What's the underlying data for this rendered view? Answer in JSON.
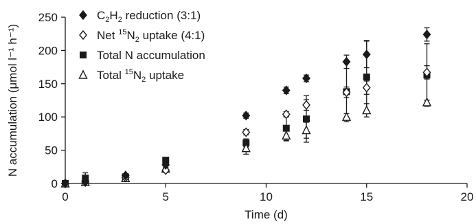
{
  "chart_data": {
    "type": "scatter",
    "xlabel": "Time (d)",
    "ylabel": "N accumulation (μmol l⁻¹ h⁻¹)",
    "xlim": [
      0,
      20
    ],
    "ylim": [
      0,
      250
    ],
    "xticks": [
      0,
      5,
      10,
      15,
      20
    ],
    "yticks": [
      0,
      50,
      100,
      150,
      200,
      250
    ],
    "grid": false,
    "legend_position": "top-left",
    "series": [
      {
        "key": "c2h2",
        "name": "C2H2 reduction (3:1)",
        "legend_parts": [
          {
            "t": "C",
            "s": ""
          },
          {
            "t": "2",
            "s": "sub"
          },
          {
            "t": "H",
            "s": ""
          },
          {
            "t": "2",
            "s": "sub"
          },
          {
            "t": " reduction (3:1)",
            "s": ""
          }
        ],
        "marker": "diamond-filled",
        "points": [
          {
            "x": 0,
            "y": 0,
            "err": 0
          },
          {
            "x": 1,
            "y": 4,
            "err": 2
          },
          {
            "x": 3,
            "y": 12,
            "err": 2
          },
          {
            "x": 5,
            "y": 28,
            "err": 2
          },
          {
            "x": 9,
            "y": 102,
            "err": 4
          },
          {
            "x": 11,
            "y": 140,
            "err": 5
          },
          {
            "x": 12,
            "y": 158,
            "err": 5
          },
          {
            "x": 14,
            "y": 183,
            "err": 10
          },
          {
            "x": 15,
            "y": 194,
            "err": 20
          },
          {
            "x": 18,
            "y": 224,
            "err": 10
          }
        ]
      },
      {
        "key": "net15n2",
        "name": "Net 15N2 uptake (4:1)",
        "legend_parts": [
          {
            "t": "Net ",
            "s": ""
          },
          {
            "t": "15",
            "s": "sup"
          },
          {
            "t": "N",
            "s": ""
          },
          {
            "t": "2",
            "s": "sub"
          },
          {
            "t": " uptake (4:1)",
            "s": ""
          }
        ],
        "marker": "diamond-open",
        "points": [
          {
            "x": 0,
            "y": 0,
            "err": 0
          },
          {
            "x": 1,
            "y": 2,
            "err": 2
          },
          {
            "x": 3,
            "y": 9,
            "err": 2
          },
          {
            "x": 5,
            "y": 20,
            "err": 3
          },
          {
            "x": 9,
            "y": 77,
            "err": 4
          },
          {
            "x": 11,
            "y": 104,
            "err": 4
          },
          {
            "x": 12,
            "y": 118,
            "err": 8
          },
          {
            "x": 14,
            "y": 137,
            "err": 8
          },
          {
            "x": 15,
            "y": 144,
            "err": 10
          },
          {
            "x": 18,
            "y": 167,
            "err": 10
          }
        ]
      },
      {
        "key": "totaln",
        "name": "Total N accumulation",
        "legend_parts": [
          {
            "t": "Total N accumulation",
            "s": ""
          }
        ],
        "marker": "square-filled",
        "points": [
          {
            "x": 0,
            "y": 0,
            "err": 0
          },
          {
            "x": 1,
            "y": 8,
            "err": 8
          },
          {
            "x": 3,
            "y": 10,
            "err": 2
          },
          {
            "x": 5,
            "y": 35,
            "err": 2
          },
          {
            "x": 9,
            "y": 61,
            "err": 6
          },
          {
            "x": 11,
            "y": 83,
            "err": 18
          },
          {
            "x": 12,
            "y": 97,
            "err": 35
          },
          {
            "x": 14,
            "y": 138,
            "err": 45
          },
          {
            "x": 15,
            "y": 160,
            "err": 55
          },
          {
            "x": 18,
            "y": 163,
            "err": 47
          }
        ]
      },
      {
        "key": "total15n2",
        "name": "Total 15N2 uptake",
        "legend_parts": [
          {
            "t": "Total ",
            "s": ""
          },
          {
            "t": "15",
            "s": "sup"
          },
          {
            "t": "N",
            "s": ""
          },
          {
            "t": "2",
            "s": "sub"
          },
          {
            "t": " uptake",
            "s": ""
          }
        ],
        "marker": "triangle-open",
        "points": [
          {
            "x": 0,
            "y": 0,
            "err": 0
          },
          {
            "x": 1,
            "y": 2,
            "err": 2
          },
          {
            "x": 3,
            "y": 8,
            "err": 2
          },
          {
            "x": 5,
            "y": 22,
            "err": 2
          },
          {
            "x": 9,
            "y": 53,
            "err": 9
          },
          {
            "x": 11,
            "y": 72,
            "err": 8
          },
          {
            "x": 12,
            "y": 80,
            "err": 12
          },
          {
            "x": 14,
            "y": 100,
            "err": 5
          },
          {
            "x": 15,
            "y": 110,
            "err": 10
          },
          {
            "x": 18,
            "y": 122,
            "err": 3
          }
        ]
      }
    ]
  }
}
